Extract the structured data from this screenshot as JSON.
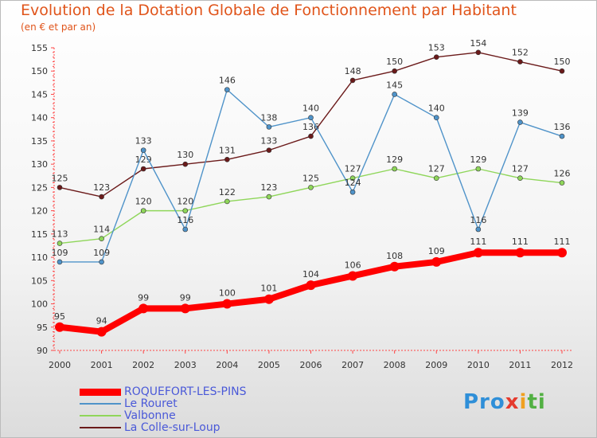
{
  "title": "Evolution de la Dotation Globale de Fonctionnement par Habitant",
  "subtitle": "(en € et par an)",
  "logo": {
    "p1": "Pro",
    "p2": "x",
    "p3": "i",
    "p4": "ti"
  },
  "chart_data": {
    "type": "line",
    "x": [
      "2000",
      "2001",
      "2002",
      "2003",
      "2004",
      "2005",
      "2006",
      "2007",
      "2008",
      "2009",
      "2010",
      "2011",
      "2012"
    ],
    "ylim": [
      90,
      155
    ],
    "yticks": [
      "90",
      "95",
      "100",
      "105",
      "110",
      "115",
      "120",
      "125",
      "130",
      "135",
      "140",
      "145",
      "150",
      "155"
    ],
    "grid": false,
    "legend_position": "bottom-left",
    "series": [
      {
        "name": "La Colle-sur-Loup",
        "color": "#6b1a1a",
        "values": [
          125,
          123,
          129,
          130,
          131,
          133,
          136,
          148,
          150,
          153,
          154,
          152,
          150
        ]
      },
      {
        "name": "Valbonne",
        "color": "#8fd65a",
        "values": [
          113,
          114,
          120,
          120,
          122,
          123,
          125,
          127,
          129,
          127,
          129,
          127,
          126
        ]
      },
      {
        "name": "Le Rouret",
        "color": "#4f93c9",
        "values": [
          109,
          109,
          133,
          116,
          146,
          138,
          140,
          124,
          145,
          140,
          116,
          139,
          136
        ]
      },
      {
        "name": "ROQUEFORT-LES-PINS",
        "color": "#ff0000",
        "values": [
          95,
          94,
          99,
          99,
          100,
          101,
          104,
          106,
          108,
          109,
          111,
          111,
          111
        ]
      }
    ],
    "legend_order": [
      "ROQUEFORT-LES-PINS",
      "Le Rouret",
      "Valbonne",
      "La Colle-sur-Loup"
    ]
  }
}
